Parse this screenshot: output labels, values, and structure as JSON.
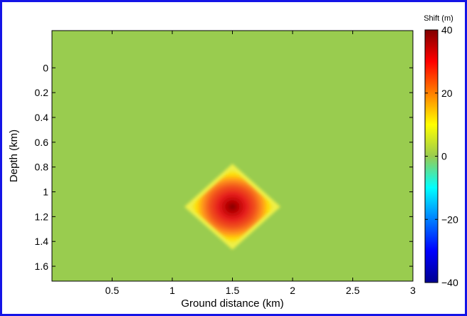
{
  "chart_data": {
    "type": "heatmap",
    "xlabel": "Ground distance (km)",
    "ylabel": "Depth (km)",
    "colorbar_label": "Shift (m)",
    "xlim": [
      0,
      3
    ],
    "ylim": [
      -0.3,
      1.72
    ],
    "x_ticks": [
      0.5,
      1,
      1.5,
      2,
      2.5,
      3
    ],
    "x_tick_labels": [
      "0.5",
      "1",
      "1.5",
      "2",
      "2.5",
      "3"
    ],
    "y_ticks": [
      0,
      0.2,
      0.4,
      0.6,
      0.8,
      1,
      1.2,
      1.4,
      1.6
    ],
    "y_tick_labels": [
      "0",
      "0.2",
      "0.4",
      "0.6",
      "0.8",
      "1",
      "1.2",
      "1.4",
      "1.6"
    ],
    "y_reversed": true,
    "clim": [
      -40,
      40
    ],
    "colorbar_ticks": [
      -40,
      -20,
      0,
      20,
      40
    ],
    "colorbar_tick_labels": [
      "−40",
      "−20",
      "0",
      "20",
      "40"
    ],
    "colormap": "jet",
    "background_value": 0,
    "anomaly": {
      "shape": "diamond",
      "center_x": 1.5,
      "center_depth": 1.12,
      "half_width_x": 0.38,
      "half_height_depth": 0.33,
      "peak_value": 40
    }
  },
  "colors": {
    "frame": "#1414e6",
    "background_field": "#99cc4f"
  }
}
